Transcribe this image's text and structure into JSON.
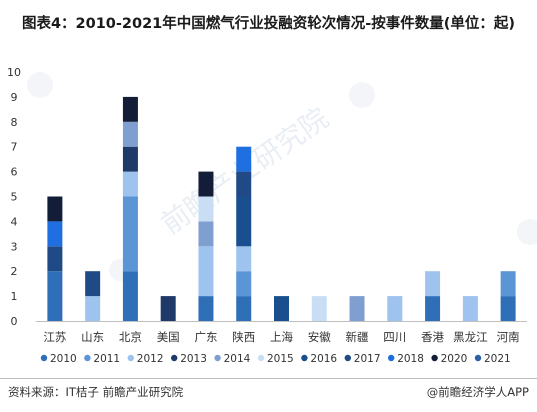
{
  "header": {
    "title": "图表4：2010-2021年中国燃气行业投融资轮次情况-按事件数量(单位：起)"
  },
  "footer": {
    "source": "资料来源：IT桔子 前瞻产业研究院",
    "brand": "@前瞻经济学人APP"
  },
  "watermark": {
    "text": "前瞻产业研究院",
    "brand_icon": "qianzhan-logo-icon"
  },
  "colors": {
    "2010": "#2e6fb8",
    "2011": "#5b95d6",
    "2012": "#9dc3ee",
    "2013": "#1f3a68",
    "2014": "#7f9fd0",
    "2015": "#c9def5",
    "2016": "#1a4f8f",
    "2017": "#204a86",
    "2018": "#1f6fe0",
    "2020": "#131d38",
    "2021": "#2c5fa8"
  },
  "chart_data": {
    "type": "bar",
    "stacked": true,
    "categories": [
      "江苏",
      "山东",
      "北京",
      "美国",
      "广东",
      "陕西",
      "上海",
      "安徽",
      "新疆",
      "四川",
      "香港",
      "黑龙江",
      "河南"
    ],
    "ylim": [
      0,
      10
    ],
    "yticks": [
      0,
      1,
      2,
      3,
      4,
      5,
      6,
      7,
      8,
      9,
      10
    ],
    "grid": false,
    "legend_position": "bottom",
    "series": [
      {
        "name": "2010",
        "values": [
          2,
          0,
          2,
          0,
          1,
          1,
          0,
          0,
          0,
          0,
          1,
          0,
          1
        ]
      },
      {
        "name": "2011",
        "values": [
          0,
          0,
          3,
          0,
          0,
          1,
          0,
          0,
          0,
          0,
          0,
          0,
          1
        ]
      },
      {
        "name": "2012",
        "values": [
          0,
          1,
          1,
          0,
          2,
          1,
          0,
          0,
          0,
          1,
          1,
          1,
          0
        ]
      },
      {
        "name": "2013",
        "values": [
          0,
          0,
          1,
          1,
          0,
          0,
          0,
          0,
          0,
          0,
          0,
          0,
          0
        ]
      },
      {
        "name": "2014",
        "values": [
          0,
          0,
          1,
          0,
          1,
          0,
          0,
          0,
          1,
          0,
          0,
          0,
          0
        ]
      },
      {
        "name": "2015",
        "values": [
          0,
          0,
          0,
          0,
          1,
          0,
          0,
          1,
          0,
          0,
          0,
          0,
          0
        ]
      },
      {
        "name": "2016",
        "values": [
          0,
          0,
          0,
          0,
          0,
          2,
          1,
          0,
          0,
          0,
          0,
          0,
          0
        ]
      },
      {
        "name": "2017",
        "values": [
          1,
          1,
          0,
          0,
          0,
          1,
          0,
          0,
          0,
          0,
          0,
          0,
          0
        ]
      },
      {
        "name": "2018",
        "values": [
          1,
          0,
          0,
          0,
          0,
          1,
          0,
          0,
          0,
          0,
          0,
          0,
          0
        ]
      },
      {
        "name": "2020",
        "values": [
          1,
          0,
          1,
          0,
          1,
          0,
          0,
          0,
          0,
          0,
          0,
          0,
          0
        ]
      },
      {
        "name": "2021",
        "values": [
          0,
          0,
          0,
          0,
          0,
          0,
          0,
          0,
          0,
          0,
          0,
          0,
          0
        ]
      }
    ]
  }
}
